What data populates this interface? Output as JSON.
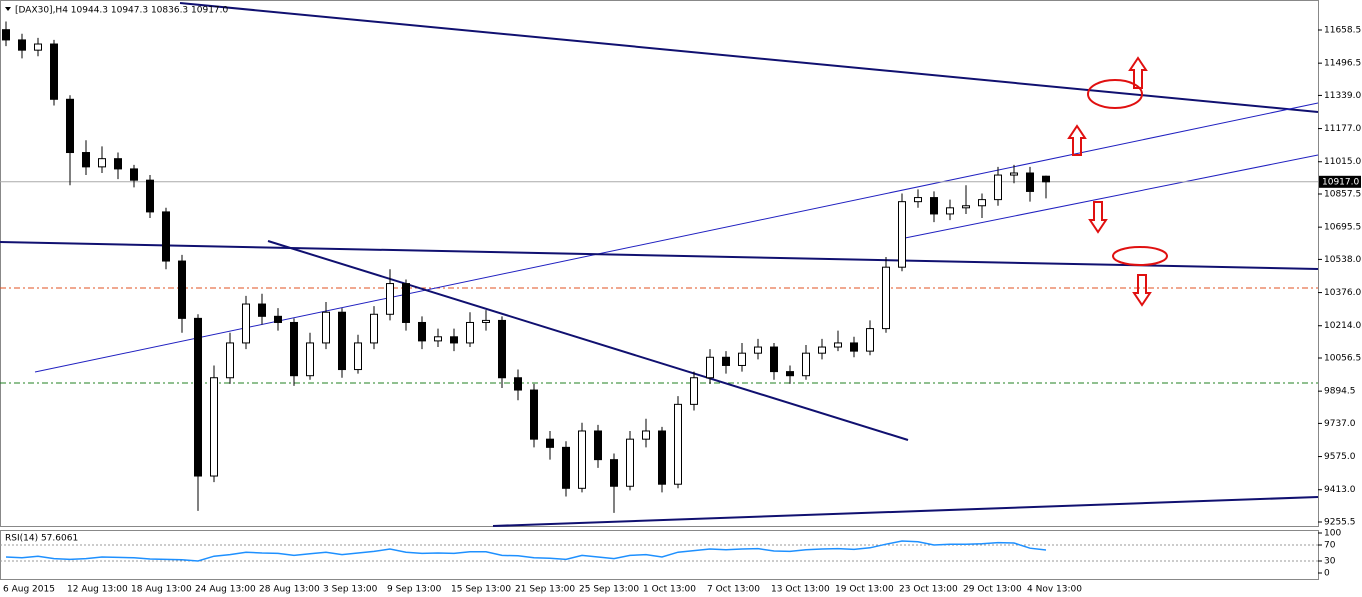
{
  "chart_data": [
    {
      "type": "candlestick",
      "title": "[DAX30],H4  10944.3 10947.3 10836.3 10917.0",
      "categories": [
        "6 Aug 2015",
        null,
        null,
        null,
        "12 Aug 13:00",
        null,
        null,
        null,
        "18 Aug 13:00",
        null,
        null,
        null,
        "24 Aug 13:00",
        null,
        null,
        null,
        "28 Aug 13:00",
        null,
        null,
        null,
        "3 Sep 13:00",
        null,
        null,
        null,
        "9 Sep 13:00",
        null,
        null,
        null,
        "15 Sep 13:00",
        null,
        null,
        null,
        "21 Sep 13:00",
        null,
        null,
        null,
        "25 Sep 13:00",
        null,
        null,
        null,
        "1 Oct 13:00",
        null,
        null,
        null,
        "7 Oct 13:00",
        null,
        null,
        null,
        "13 Oct 13:00",
        null,
        null,
        null,
        "19 Oct 13:00",
        null,
        null,
        null,
        "23 Oct 13:00",
        null,
        null,
        null,
        "29 Oct 13:00",
        null,
        null,
        null,
        "4 Nov 13:00",
        null
      ],
      "open": [
        11660,
        11610,
        11560,
        11590,
        11320,
        11060,
        10990,
        11030,
        10980,
        10925,
        10770,
        10530,
        10250,
        9480,
        9960,
        10130,
        10320,
        10260,
        10230,
        9970,
        10130,
        10280,
        10000,
        10130,
        10270,
        10420,
        10230,
        10140,
        10160,
        10130,
        10230,
        10240,
        9960,
        9900,
        9660,
        9620,
        9420,
        9700,
        9560,
        9430,
        9660,
        9700,
        9440,
        9830,
        9960,
        10060,
        10020,
        10080,
        10110,
        9990,
        9970,
        10080,
        10110,
        10130,
        10090,
        10200,
        10500,
        10820,
        10840,
        10760,
        10790,
        10800,
        10830,
        10950,
        10960,
        10944.3
      ],
      "high": [
        11700,
        11640,
        11620,
        11610,
        11340,
        11120,
        11090,
        11060,
        11000,
        10950,
        10790,
        10560,
        10270,
        10020,
        10180,
        10360,
        10370,
        10300,
        10250,
        10180,
        10330,
        10300,
        10170,
        10310,
        10490,
        10440,
        10260,
        10200,
        10200,
        10280,
        10290,
        10260,
        10000,
        9930,
        9700,
        9650,
        9740,
        9730,
        9590,
        9700,
        9760,
        9720,
        9870,
        9990,
        10100,
        10090,
        10130,
        10150,
        10130,
        10020,
        10120,
        10150,
        10190,
        10160,
        10240,
        10550,
        10860,
        10880,
        10870,
        10830,
        10900,
        10860,
        10990,
        11000,
        10990,
        10947.3
      ],
      "low": [
        11580,
        11520,
        11530,
        11290,
        10900,
        10950,
        10960,
        10930,
        10890,
        10740,
        10490,
        10180,
        9310,
        9450,
        9930,
        10100,
        10220,
        10190,
        9920,
        9950,
        10100,
        9960,
        9980,
        10100,
        10240,
        10190,
        10100,
        10110,
        10090,
        10110,
        10190,
        9910,
        9850,
        9620,
        9560,
        9380,
        9400,
        9520,
        9300,
        9410,
        9620,
        9400,
        9420,
        9800,
        9930,
        9980,
        9990,
        10050,
        9950,
        9930,
        9950,
        10050,
        10090,
        10060,
        10070,
        10180,
        10480,
        10790,
        10720,
        10730,
        10760,
        10740,
        10800,
        10910,
        10820,
        10836.3
      ],
      "close": [
        11610,
        11560,
        11590,
        11320,
        11060,
        10990,
        11030,
        10980,
        10925,
        10770,
        10530,
        10250,
        9480,
        9960,
        10130,
        10320,
        10260,
        10230,
        9970,
        10130,
        10280,
        10000,
        10130,
        10270,
        10420,
        10230,
        10140,
        10160,
        10130,
        10230,
        10240,
        9960,
        9900,
        9660,
        9620,
        9420,
        9700,
        9560,
        9430,
        9660,
        9700,
        9440,
        9830,
        9960,
        10060,
        10020,
        10080,
        10110,
        9990,
        9970,
        10080,
        10110,
        10130,
        10090,
        10200,
        10500,
        10820,
        10840,
        10760,
        10790,
        10800,
        10830,
        10950,
        10960,
        10870,
        10917
      ],
      "up_color": "#ffffff",
      "down_color": "#000000",
      "ylim": [
        9231,
        11805
      ],
      "yticks": [
        {
          "value": 11658.5,
          "label": "11658.5"
        },
        {
          "value": 11496.5,
          "label": "11496.5"
        },
        {
          "value": 11339,
          "label": "11339.0"
        },
        {
          "value": 11177,
          "label": "11177.0"
        },
        {
          "value": 11015,
          "label": "11015.0"
        },
        {
          "value": 10857.5,
          "label": "10857.5"
        },
        {
          "value": 10695.5,
          "label": "10695.5"
        },
        {
          "value": 10538,
          "label": "10538.0"
        },
        {
          "value": 10376,
          "label": "10376.0"
        },
        {
          "value": 10214,
          "label": "10214.0"
        },
        {
          "value": 10056.5,
          "label": "10056.5"
        },
        {
          "value": 9894.5,
          "label": "9894.5"
        },
        {
          "value": 9737,
          "label": "9737.0"
        },
        {
          "value": 9575,
          "label": "9575.0"
        },
        {
          "value": 9413,
          "label": "9413.0"
        },
        {
          "value": 9255.5,
          "label": "9255.5"
        }
      ],
      "current_price": {
        "value": 10917,
        "label": "10917.0"
      }
    },
    {
      "type": "line",
      "title": "RSI(14) 57.6061",
      "color": "#1e90ff",
      "values": [
        40,
        38,
        42,
        36,
        34,
        36,
        40,
        39,
        38,
        35,
        34,
        33,
        30,
        42,
        46,
        52,
        50,
        49,
        44,
        48,
        52,
        46,
        50,
        54,
        60,
        52,
        49,
        50,
        49,
        53,
        53,
        44,
        43,
        38,
        37,
        34,
        44,
        40,
        36,
        44,
        46,
        40,
        52,
        56,
        60,
        58,
        60,
        61,
        55,
        54,
        58,
        60,
        61,
        59,
        63,
        72,
        80,
        78,
        70,
        72,
        72,
        73,
        76,
        75,
        62,
        57.6061
      ],
      "ylim": [
        -17.5,
        107.5
      ],
      "yticks": [
        100,
        70,
        30,
        0
      ]
    }
  ]
}
